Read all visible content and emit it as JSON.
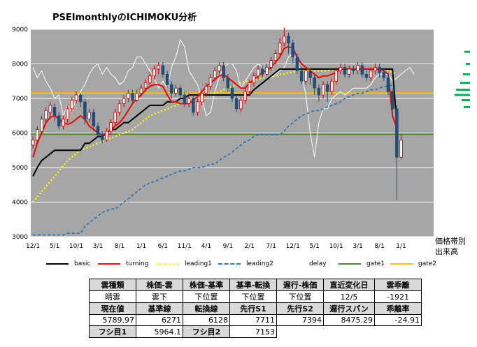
{
  "title": "PSEImonthlyのICHIMOKU分析",
  "side_labels": {
    "band": "価格帯別",
    "volume": "出来高"
  },
  "legend": [
    {
      "name": "basic",
      "color": "#000000",
      "style": "solid"
    },
    {
      "name": "turning",
      "color": "#ff0000",
      "style": "solid"
    },
    {
      "name": "leading1",
      "color": "#ffff00",
      "style": "dotted"
    },
    {
      "name": "leading2",
      "color": "#2e75b6",
      "style": "dashed"
    },
    {
      "name": "delay",
      "color": "#ffffff",
      "style": "solid"
    },
    {
      "name": "gate1",
      "color": "#548235",
      "style": "solid"
    },
    {
      "name": "gate2",
      "color": "#ffc000",
      "style": "solid"
    }
  ],
  "table": {
    "row1_headers": [
      "雲種類",
      "株価-雲",
      "株価-基準",
      "基準-転換",
      "遅行-株価",
      "直近変化日",
      "雲乖離"
    ],
    "row1_values": [
      "晴雲",
      "雲下",
      "下位置",
      "下位置",
      "下位置",
      "12/5",
      "-1921"
    ],
    "row2_headers": [
      "現在値",
      "基準線",
      "転換線",
      "先行S1",
      "先行S2",
      "遅行スパン",
      "乖離率"
    ],
    "row2_values": [
      "5789.97",
      "6271",
      "6128",
      "7711",
      "7394",
      "8475.29",
      "-24.91"
    ],
    "row3": {
      "h1": "フシ目1",
      "v1": "5964.1",
      "h2": "フシ目2",
      "v2": "7153"
    }
  },
  "chart_data": {
    "type": "candlestick",
    "title": "PSEImonthlyのICHIMOKU分析",
    "ylim": [
      3000,
      9000
    ],
    "yticks": [
      3000,
      4000,
      5000,
      6000,
      7000,
      8000,
      9000
    ],
    "xtick_labels": [
      "12/1",
      "5/1",
      "10/1",
      "3/1",
      "8/1",
      "1/1",
      "6/1",
      "11/1",
      "4/1",
      "9/1",
      "2/1",
      "7/1",
      "12/1",
      "5/1",
      "10/1",
      "3/1",
      "8/1",
      "1/1"
    ],
    "xtick_period": 5,
    "n_periods": 93,
    "grid": true,
    "background": "#a6a6a6",
    "gate1": 5964.1,
    "gate2": 7153,
    "candles": [
      [
        5650,
        5800,
        5550,
        5900
      ],
      [
        5800,
        6100,
        5700,
        6200
      ],
      [
        6050,
        6400,
        5950,
        6500
      ],
      [
        6400,
        6650,
        6300,
        6750
      ],
      [
        6600,
        6800,
        6450,
        6900
      ],
      [
        6750,
        6500,
        6350,
        6850
      ],
      [
        6500,
        6200,
        6100,
        6600
      ],
      [
        6200,
        6400,
        6100,
        6500
      ],
      [
        6400,
        6700,
        6300,
        6800
      ],
      [
        6700,
        6950,
        6600,
        7050
      ],
      [
        6950,
        7100,
        6850,
        7200
      ],
      [
        7100,
        6900,
        6750,
        7150
      ],
      [
        6900,
        6400,
        6250,
        7000
      ],
      [
        6400,
        6600,
        6300,
        6700
      ],
      [
        6600,
        6200,
        6050,
        6700
      ],
      [
        6200,
        5950,
        5850,
        6300
      ],
      [
        5950,
        5800,
        5700,
        6050
      ],
      [
        5800,
        6050,
        5750,
        6150
      ],
      [
        6050,
        6300,
        5950,
        6400
      ],
      [
        6300,
        6600,
        6200,
        6700
      ],
      [
        6600,
        6850,
        6500,
        6950
      ],
      [
        6850,
        7000,
        6750,
        7100
      ],
      [
        7000,
        7150,
        6900,
        7250
      ],
      [
        7150,
        6950,
        6850,
        7250
      ],
      [
        6950,
        7150,
        6900,
        7250
      ],
      [
        7150,
        7300,
        7050,
        7400
      ],
      [
        7300,
        7450,
        7200,
        7550
      ],
      [
        7450,
        7650,
        7350,
        7750
      ],
      [
        7650,
        7850,
        7550,
        7950
      ],
      [
        7850,
        7950,
        7700,
        8050
      ],
      [
        7950,
        7700,
        7600,
        8050
      ],
      [
        7700,
        7400,
        7300,
        7800
      ],
      [
        7400,
        7150,
        7000,
        7500
      ],
      [
        7150,
        7300,
        7050,
        7400
      ],
      [
        7300,
        7100,
        6950,
        7400
      ],
      [
        7100,
        6850,
        6750,
        7200
      ],
      [
        6850,
        7000,
        6750,
        7150
      ],
      [
        7000,
        6600,
        6500,
        7100
      ],
      [
        6600,
        6900,
        6500,
        7000
      ],
      [
        6900,
        7150,
        6800,
        7250
      ],
      [
        7150,
        7350,
        7050,
        7450
      ],
      [
        7350,
        7600,
        7250,
        7700
      ],
      [
        7600,
        7800,
        7500,
        7900
      ],
      [
        7800,
        7950,
        7700,
        8050
      ],
      [
        7950,
        7600,
        7500,
        8050
      ],
      [
        7600,
        7300,
        7200,
        7700
      ],
      [
        7300,
        7000,
        6900,
        7400
      ],
      [
        7000,
        6700,
        6600,
        7100
      ],
      [
        6700,
        6950,
        6600,
        7050
      ],
      [
        6950,
        7200,
        6850,
        7300
      ],
      [
        7200,
        7450,
        7100,
        7550
      ],
      [
        7450,
        7650,
        7350,
        7750
      ],
      [
        7650,
        7850,
        7550,
        7950
      ],
      [
        7850,
        7700,
        7600,
        7950
      ],
      [
        7700,
        7900,
        7600,
        8000
      ],
      [
        7900,
        8100,
        7800,
        8200
      ],
      [
        8100,
        8300,
        8000,
        8400
      ],
      [
        8300,
        8600,
        8200,
        8750
      ],
      [
        8600,
        8800,
        8500,
        9050
      ],
      [
        8800,
        8600,
        8300,
        8900
      ],
      [
        8600,
        8200,
        8000,
        8700
      ],
      [
        8200,
        7800,
        7700,
        8300
      ],
      [
        7800,
        7500,
        7400,
        7900
      ],
      [
        7500,
        7800,
        7400,
        7900
      ],
      [
        7800,
        7600,
        7400,
        7900
      ],
      [
        7600,
        7300,
        7100,
        7700
      ],
      [
        7300,
        7100,
        6900,
        7400
      ],
      [
        7100,
        7400,
        7000,
        7500
      ],
      [
        7400,
        7200,
        6900,
        7500
      ],
      [
        7200,
        7500,
        7100,
        7600
      ],
      [
        7500,
        7800,
        7400,
        7900
      ],
      [
        7800,
        7900,
        7700,
        8000
      ],
      [
        7900,
        7700,
        7600,
        8000
      ],
      [
        7700,
        7850,
        7600,
        7950
      ],
      [
        7850,
        7800,
        7700,
        7950
      ],
      [
        7800,
        7950,
        7700,
        8050
      ],
      [
        7950,
        7700,
        7600,
        8050
      ],
      [
        7700,
        7600,
        7500,
        7800
      ],
      [
        7600,
        7800,
        7500,
        7900
      ],
      [
        7800,
        7900,
        7700,
        8000
      ],
      [
        7900,
        7750,
        7600,
        8000
      ],
      [
        7750,
        7600,
        7500,
        7850
      ],
      [
        7600,
        7200,
        7100,
        7700
      ],
      [
        7200,
        6700,
        6500,
        7300
      ],
      [
        6700,
        5300,
        4050,
        6800
      ],
      [
        5300,
        5790,
        5250,
        5950
      ]
    ],
    "basic": [
      4750,
      5000,
      5200,
      5300,
      5400,
      5500,
      5500,
      5500,
      5500,
      5500,
      5500,
      5500,
      5700,
      5700,
      5800,
      5900,
      5900,
      6000,
      6100,
      6100,
      6200,
      6300,
      6300,
      6400,
      6500,
      6600,
      6700,
      6800,
      6800,
      6800,
      6800,
      6900,
      6900,
      6900,
      7000,
      7000,
      7100,
      7100,
      7100,
      7100,
      7100,
      7100,
      7100,
      7100,
      7100,
      7100,
      7100,
      7100,
      7100,
      7100,
      7100,
      7250,
      7350,
      7450,
      7550,
      7650,
      7750,
      7850,
      7850,
      7850,
      7850,
      7850,
      7850,
      7850,
      7850,
      7850,
      7850,
      7850,
      7850,
      7850,
      7850,
      7850,
      7850,
      7850,
      7850,
      7850,
      7850,
      7850,
      7850,
      7850,
      7850,
      7850,
      7850,
      7850,
      6271
    ],
    "turning": [
      5300,
      5700,
      6000,
      6300,
      6450,
      6500,
      6400,
      6300,
      6250,
      6300,
      6400,
      6500,
      6400,
      6200,
      6100,
      6000,
      5950,
      6000,
      6100,
      6200,
      6300,
      6450,
      6650,
      6850,
      7000,
      7100,
      7250,
      7350,
      7400,
      7400,
      7350,
      7100,
      6900,
      6900,
      6850,
      6850,
      6850,
      6950,
      7050,
      7200,
      7350,
      7450,
      7550,
      7650,
      7700,
      7600,
      7500,
      7400,
      7300,
      7300,
      7450,
      7550,
      7650,
      7750,
      7800,
      7900,
      8050,
      8200,
      8450,
      8500,
      8450,
      8200,
      8000,
      7900,
      7800,
      7700,
      7600,
      7650,
      7650,
      7700,
      7750,
      7850,
      7850,
      7850,
      7850,
      7850,
      7850,
      7850,
      7850,
      7850,
      7850,
      7800,
      7700,
      6500,
      6128
    ],
    "leading1_start_index": 0,
    "leading1": [
      4000,
      4150,
      4300,
      4450,
      4600,
      4750,
      4900,
      5050,
      5200,
      5300,
      5400,
      5500,
      5550,
      5600,
      5650,
      5700,
      5750,
      5800,
      5850,
      5900,
      5950,
      6000,
      6050,
      6100,
      6200,
      6300,
      6400,
      6500,
      6550,
      6600,
      6650,
      6700,
      6750,
      6800,
      6850,
      6900,
      6950,
      7000,
      7000,
      7050,
      7100,
      7150,
      7150,
      7200,
      7250,
      7300,
      7350,
      7400,
      7450,
      7500,
      7500,
      7550,
      7550,
      7600,
      7600,
      7650,
      7650,
      7700,
      7700,
      7750,
      7750,
      7800,
      7800,
      7800,
      7800,
      7800,
      7800,
      7800,
      7800,
      7850,
      7850,
      7850,
      7850,
      7850,
      7850,
      7850,
      7850,
      7850,
      7850,
      7850,
      7850,
      7850,
      7800,
      7750,
      7711
    ],
    "leading2": [
      3050,
      3050,
      3050,
      3050,
      3050,
      3050,
      3050,
      3050,
      3100,
      3100,
      3100,
      3100,
      3300,
      3400,
      3500,
      3600,
      3700,
      3750,
      3800,
      3800,
      3900,
      4000,
      4100,
      4200,
      4300,
      4400,
      4500,
      4550,
      4600,
      4650,
      4700,
      4750,
      4800,
      4850,
      4900,
      4900,
      4950,
      5000,
      5000,
      5000,
      5050,
      5100,
      5100,
      5200,
      5300,
      5350,
      5450,
      5550,
      5650,
      5750,
      5800,
      5900,
      5950,
      5950,
      5950,
      5950,
      5950,
      5950,
      6050,
      6200,
      6300,
      6400,
      6500,
      6550,
      6600,
      6650,
      6650,
      6700,
      6750,
      6800,
      6850,
      6900,
      7000,
      7050,
      7100,
      7150,
      7150,
      7200,
      7250,
      7250,
      7300,
      7350,
      7350,
      7394
    ],
    "delay": [
      7900,
      7600,
      7800,
      7500,
      7300,
      7000,
      7100,
      6500,
      6800,
      6600,
      7000,
      7200,
      7400,
      7700,
      7900,
      8000,
      7700,
      7900,
      7700,
      7600,
      7400,
      7500,
      7800,
      7900,
      8200,
      8200,
      8000,
      7800,
      7600,
      7300,
      7500,
      7300,
      7900,
      8200,
      8700,
      8500,
      7800,
      7600,
      7400,
      7000,
      6500,
      6600,
      7200,
      7600,
      7900,
      8000,
      8000,
      7800,
      7300,
      7500,
      7700,
      7900,
      8000,
      7900,
      7600,
      7600,
      7700,
      7800,
      7900,
      8200,
      8300,
      8100,
      7700,
      7100,
      6000,
      5300,
      6300,
      6700,
      6700,
      7000,
      7100,
      7200,
      7100,
      7200,
      7300,
      7300,
      7300,
      7300,
      7400,
      7600,
      7700,
      7700,
      7700,
      7500,
      7600,
      7700,
      7800,
      7900,
      7700
    ],
    "volume_profile": [
      {
        "level": 8350,
        "w": 8
      },
      {
        "level": 8000,
        "w": 6
      },
      {
        "level": 7700,
        "w": 10
      },
      {
        "level": 7450,
        "w": 14
      },
      {
        "level": 7250,
        "w": 20
      },
      {
        "level": 7100,
        "w": 22
      },
      {
        "level": 6950,
        "w": 12
      },
      {
        "level": 6750,
        "w": 9
      }
    ]
  }
}
